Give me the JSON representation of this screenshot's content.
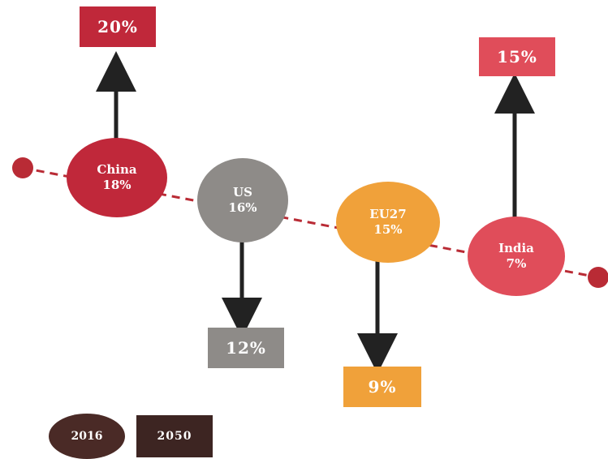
{
  "colors": {
    "china": "#c0283a",
    "us": "#8e8b88",
    "eu27": "#f0a13a",
    "india": "#e04d5a",
    "legend_2016": "#4a2a26",
    "legend_2050": "#3d2522",
    "line": "#b92b35",
    "arrow": "#222222"
  },
  "countries": [
    {
      "name": "China",
      "share_2016": "18%",
      "share_2050": "20%",
      "direction": "up",
      "color_key": "china"
    },
    {
      "name": "US",
      "share_2016": "16%",
      "share_2050": "12%",
      "direction": "down",
      "color_key": "us"
    },
    {
      "name": "EU27",
      "share_2016": "15%",
      "share_2050": "9%",
      "direction": "down",
      "color_key": "eu27"
    },
    {
      "name": "India",
      "share_2016": "7%",
      "share_2050": "15%",
      "direction": "up",
      "color_key": "india"
    }
  ],
  "legend": {
    "circle_label": "2016",
    "box_label": "2050"
  }
}
